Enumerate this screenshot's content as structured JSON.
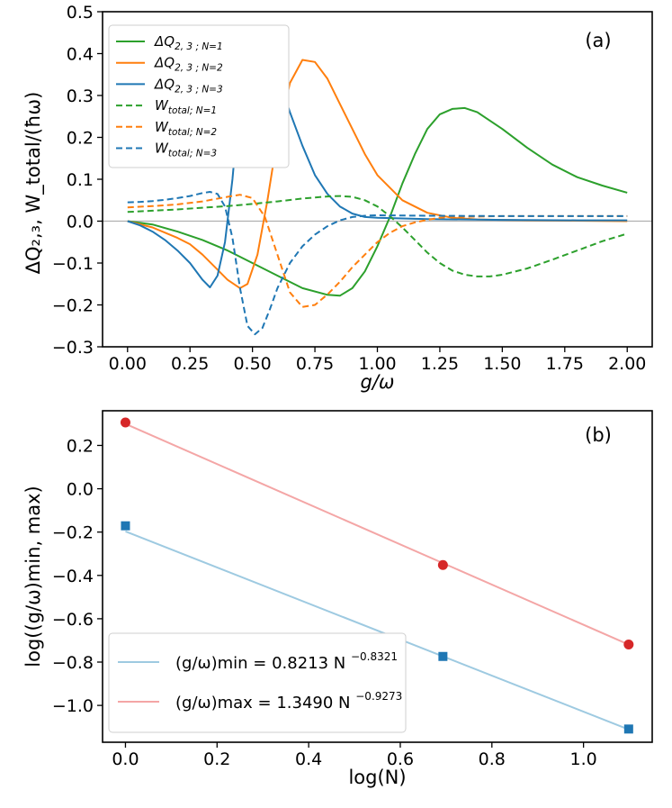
{
  "chart_data": [
    {
      "type": "line",
      "panel_label": "(a)",
      "xlabel": "g/ω",
      "ylabel": "ΔQ₂,₃,  W_total/(ħω)",
      "xlim": [
        -0.1,
        2.1
      ],
      "ylim": [
        -0.3,
        0.5
      ],
      "xticks": [
        0.0,
        0.25,
        0.5,
        0.75,
        1.0,
        1.25,
        1.5,
        1.75,
        2.0
      ],
      "xtick_labels": [
        "0.00",
        "0.25",
        "0.50",
        "0.75",
        "1.00",
        "1.25",
        "1.50",
        "1.75",
        "2.00"
      ],
      "yticks": [
        -0.3,
        -0.2,
        -0.1,
        0.0,
        0.1,
        0.2,
        0.3,
        0.4,
        0.5
      ],
      "ytick_labels": [
        "−0.3",
        "−0.2",
        "−0.1",
        "0.0",
        "0.1",
        "0.2",
        "0.3",
        "0.4",
        "0.5"
      ],
      "reference_line": 0.0,
      "legend_position": "upper-left",
      "series": [
        {
          "name": "ΔQ2,3; N=1",
          "main": "ΔQ",
          "sub": "2, 3 ; N=1",
          "color": "#2ca02c",
          "style": "solid",
          "x": [
            0,
            0.1,
            0.2,
            0.3,
            0.4,
            0.5,
            0.6,
            0.7,
            0.8,
            0.85,
            0.9,
            0.95,
            1.0,
            1.05,
            1.1,
            1.15,
            1.2,
            1.25,
            1.3,
            1.35,
            1.4,
            1.5,
            1.6,
            1.7,
            1.8,
            1.9,
            2.0
          ],
          "y": [
            0,
            -0.008,
            -0.025,
            -0.045,
            -0.07,
            -0.1,
            -0.13,
            -0.16,
            -0.176,
            -0.178,
            -0.16,
            -0.12,
            -0.06,
            0.01,
            0.09,
            0.16,
            0.22,
            0.255,
            0.268,
            0.27,
            0.26,
            0.22,
            0.175,
            0.135,
            0.105,
            0.085,
            0.068
          ]
        },
        {
          "name": "ΔQ2,3; N=2",
          "main": "ΔQ",
          "sub": "2, 3 ; N=2",
          "color": "#ff7f0e",
          "style": "solid",
          "x": [
            0,
            0.1,
            0.2,
            0.25,
            0.3,
            0.35,
            0.4,
            0.45,
            0.48,
            0.52,
            0.56,
            0.6,
            0.65,
            0.7,
            0.75,
            0.8,
            0.85,
            0.9,
            0.95,
            1.0,
            1.1,
            1.2,
            1.3,
            1.4,
            1.6,
            1.8,
            2.0
          ],
          "y": [
            0,
            -0.015,
            -0.04,
            -0.055,
            -0.08,
            -0.11,
            -0.14,
            -0.16,
            -0.15,
            -0.08,
            0.05,
            0.2,
            0.33,
            0.385,
            0.38,
            0.34,
            0.28,
            0.22,
            0.16,
            0.11,
            0.05,
            0.02,
            0.008,
            0.004,
            0.002,
            0.001,
            0.0
          ]
        },
        {
          "name": "ΔQ2,3; N=3",
          "main": "ΔQ",
          "sub": "2, 3 ; N=3",
          "color": "#1f77b4",
          "style": "solid",
          "x": [
            0,
            0.05,
            0.1,
            0.15,
            0.2,
            0.25,
            0.3,
            0.33,
            0.36,
            0.39,
            0.42,
            0.45,
            0.48,
            0.5,
            0.53,
            0.56,
            0.6,
            0.65,
            0.7,
            0.75,
            0.8,
            0.85,
            0.9,
            0.95,
            1.0,
            1.2,
            1.5,
            1.8,
            2.0
          ],
          "y": [
            0,
            -0.01,
            -0.025,
            -0.045,
            -0.07,
            -0.1,
            -0.14,
            -0.158,
            -0.13,
            -0.05,
            0.1,
            0.3,
            0.43,
            0.462,
            0.455,
            0.42,
            0.35,
            0.26,
            0.18,
            0.11,
            0.065,
            0.035,
            0.018,
            0.01,
            0.008,
            0.005,
            0.003,
            0.002,
            0.002
          ]
        },
        {
          "name": "Wtotal; N=1",
          "main": "W",
          "sub": "total; N=1",
          "color": "#2ca02c",
          "style": "dashed",
          "x": [
            0,
            0.1,
            0.2,
            0.3,
            0.4,
            0.5,
            0.6,
            0.7,
            0.8,
            0.85,
            0.9,
            0.95,
            1.0,
            1.05,
            1.1,
            1.15,
            1.2,
            1.25,
            1.3,
            1.35,
            1.4,
            1.45,
            1.5,
            1.6,
            1.7,
            1.8,
            1.9,
            2.0
          ],
          "y": [
            0.022,
            0.025,
            0.028,
            0.032,
            0.036,
            0.041,
            0.047,
            0.054,
            0.059,
            0.06,
            0.058,
            0.05,
            0.035,
            0.012,
            -0.015,
            -0.045,
            -0.075,
            -0.1,
            -0.118,
            -0.128,
            -0.132,
            -0.132,
            -0.128,
            -0.113,
            -0.092,
            -0.07,
            -0.048,
            -0.03
          ]
        },
        {
          "name": "Wtotal; N=2",
          "main": "W",
          "sub": "total; N=2",
          "color": "#ff7f0e",
          "style": "dashed",
          "x": [
            0,
            0.1,
            0.2,
            0.3,
            0.4,
            0.45,
            0.5,
            0.55,
            0.6,
            0.65,
            0.7,
            0.75,
            0.8,
            0.85,
            0.9,
            0.95,
            1.0,
            1.05,
            1.1,
            1.15,
            1.2,
            1.25,
            1.3,
            1.5,
            1.75,
            2.0
          ],
          "y": [
            0.033,
            0.036,
            0.04,
            0.047,
            0.058,
            0.063,
            0.055,
            0.01,
            -0.08,
            -0.17,
            -0.205,
            -0.2,
            -0.175,
            -0.145,
            -0.11,
            -0.08,
            -0.05,
            -0.028,
            -0.012,
            -0.003,
            0.003,
            0.008,
            0.01,
            0.012,
            0.012,
            0.012
          ]
        },
        {
          "name": "Wtotal; N=3",
          "main": "W",
          "sub": "total; N=3",
          "color": "#1f77b4",
          "style": "dashed",
          "x": [
            0,
            0.05,
            0.1,
            0.15,
            0.2,
            0.25,
            0.3,
            0.33,
            0.36,
            0.39,
            0.42,
            0.45,
            0.48,
            0.51,
            0.54,
            0.57,
            0.6,
            0.65,
            0.7,
            0.75,
            0.8,
            0.85,
            0.9,
            0.95,
            1.0,
            1.2,
            1.5,
            2.0
          ],
          "y": [
            0.045,
            0.046,
            0.048,
            0.051,
            0.055,
            0.06,
            0.067,
            0.07,
            0.065,
            0.035,
            -0.04,
            -0.16,
            -0.25,
            -0.27,
            -0.255,
            -0.21,
            -0.16,
            -0.1,
            -0.06,
            -0.032,
            -0.012,
            0.002,
            0.01,
            0.013,
            0.014,
            0.013,
            0.012,
            0.012
          ]
        }
      ]
    },
    {
      "type": "scatter",
      "panel_label": "(b)",
      "xlabel": "log(N)",
      "ylabel": "log((g/ω)min, max)",
      "xlim": [
        -0.05,
        1.15
      ],
      "ylim": [
        -1.17,
        0.36
      ],
      "xticks": [
        0.0,
        0.2,
        0.4,
        0.6,
        0.8,
        1.0
      ],
      "xtick_labels": [
        "0.0",
        "0.2",
        "0.4",
        "0.6",
        "0.8",
        "1.0"
      ],
      "yticks": [
        -1.0,
        -0.8,
        -0.6,
        -0.4,
        -0.2,
        0.0,
        0.2
      ],
      "ytick_labels": [
        "−1.0",
        "−0.8",
        "−0.6",
        "−0.4",
        "−0.2",
        "0.0",
        "0.2"
      ],
      "legend_position": "lower-left",
      "series": [
        {
          "name": "(g/ω)min = 0.8213 N^−0.8321",
          "legend_label": "(g/ω)min = 0.8213 N",
          "legend_exponent": "−0.8321",
          "line_color": "#9ecae1",
          "marker_color": "#1f77b4",
          "marker": "square",
          "x": [
            0.0,
            0.6931,
            1.0986
          ],
          "y": [
            -0.171,
            -0.774,
            -1.109
          ],
          "fit_x": [
            0.0,
            1.0986
          ],
          "fit_y": [
            -0.1968,
            -1.111
          ]
        },
        {
          "name": "(g/ω)max = 1.3490 N^−0.9273",
          "legend_label": "(g/ω)max = 1.3490 N",
          "legend_exponent": "−0.9273",
          "line_color": "#f4a6a6",
          "marker_color": "#d62728",
          "marker": "circle",
          "x": [
            0.0,
            0.6931,
            1.0986
          ],
          "y": [
            0.306,
            -0.352,
            -0.719
          ],
          "fit_x": [
            0.0,
            1.0986
          ],
          "fit_y": [
            0.2994,
            -0.7193
          ]
        }
      ]
    }
  ]
}
